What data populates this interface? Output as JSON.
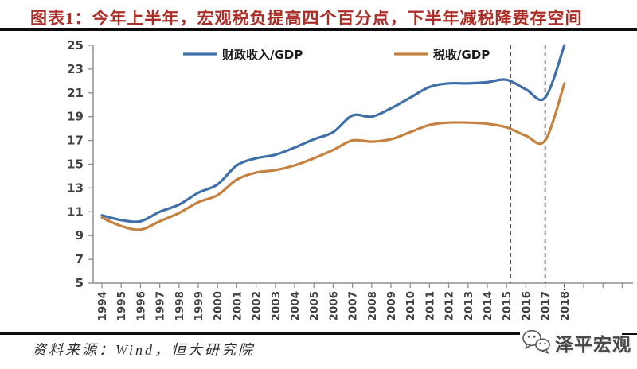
{
  "header": {
    "title": "图表1：今年上半年，宏观税负提高四个百分点，下半年减税降费存空间"
  },
  "footer": {
    "source": "资料来源：Wind，恒大研究院",
    "logo_text": "泽平宏观",
    "logo_icon": "wechat-icon"
  },
  "colors": {
    "title": "#ab2f28",
    "fiscal_line": "#3e6fa7",
    "tax_line": "#c5813f",
    "axis": "#8f8f8f",
    "tick_label": "#404040",
    "legend_label": "#1a1a1a",
    "dashed_line": "#2f2f2f"
  },
  "chart_data": {
    "type": "line",
    "title": "图表1：今年上半年，宏观税负提高四个百分点，下半年减税降费存空间",
    "xlabel": "",
    "ylabel": "",
    "x": [
      1994,
      1995,
      1996,
      1997,
      1998,
      1999,
      2000,
      2001,
      2002,
      2003,
      2004,
      2005,
      2006,
      2007,
      2008,
      2009,
      2010,
      2011,
      2012,
      2013,
      2014,
      2015,
      2016,
      2017,
      2018
    ],
    "series": [
      {
        "name": "财政收入/GDP",
        "color_key": "fiscal_line",
        "values": [
          10.7,
          10.3,
          10.2,
          11.0,
          11.6,
          12.6,
          13.3,
          14.9,
          15.5,
          15.8,
          16.4,
          17.1,
          17.7,
          19.1,
          19.0,
          19.7,
          20.6,
          21.5,
          21.8,
          21.8,
          21.9,
          22.1,
          21.3,
          20.6,
          25.0
        ]
      },
      {
        "name": "税收/GDP",
        "color_key": "tax_line",
        "values": [
          10.5,
          9.8,
          9.5,
          10.2,
          10.9,
          11.8,
          12.4,
          13.7,
          14.3,
          14.5,
          14.9,
          15.5,
          16.2,
          17.0,
          16.9,
          17.1,
          17.7,
          18.3,
          18.5,
          18.5,
          18.4,
          18.1,
          17.4,
          17.0,
          21.8
        ]
      }
    ],
    "ylim": [
      5,
      25
    ],
    "ytick_step": 2,
    "dashed_vlines_years": [
      2015.2,
      2017
    ],
    "dotted_stub_year": 2018,
    "legend_position": "top-inside",
    "grid": false
  }
}
